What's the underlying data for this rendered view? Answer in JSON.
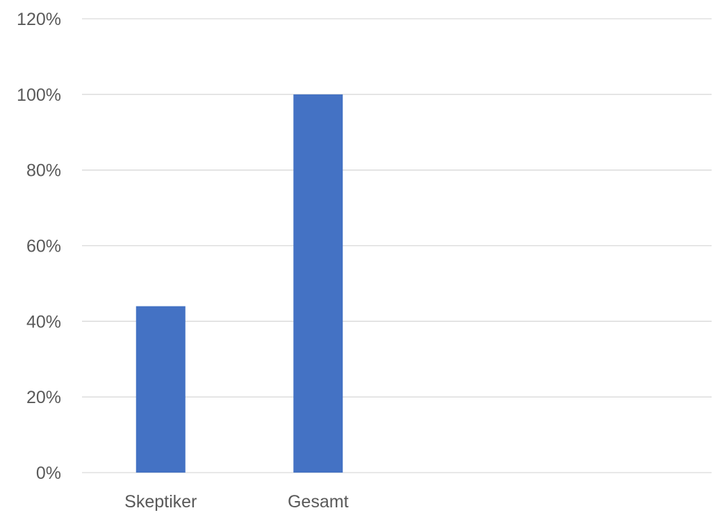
{
  "chart_data": {
    "type": "bar",
    "title": "",
    "xlabel": "",
    "ylabel": "",
    "categories": [
      "Skeptiker",
      "Gesamt",
      "",
      ""
    ],
    "series": [
      {
        "values": [
          0.44,
          1.0,
          null,
          null
        ]
      }
    ],
    "ylim": [
      0,
      1.2
    ],
    "yticks": [
      0,
      0.2,
      0.4,
      0.6,
      0.8,
      1.0,
      1.2
    ],
    "ytick_labels": [
      "0%",
      "20%",
      "40%",
      "60%",
      "80%",
      "100%",
      "120%"
    ],
    "grid": true,
    "legend": "none",
    "colors": {
      "bar": "#4472C4",
      "grid": "#D9D9D9",
      "text": "#595959"
    }
  }
}
